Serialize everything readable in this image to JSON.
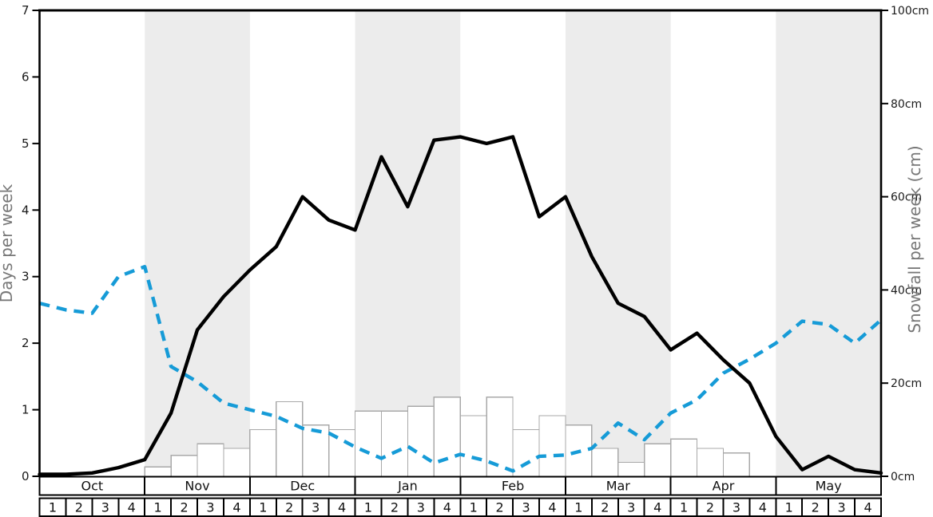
{
  "chart_data": {
    "type": "line",
    "title": "",
    "x_axis": {
      "months": [
        "Oct",
        "Nov",
        "Dec",
        "Jan",
        "Feb",
        "Mar",
        "Apr",
        "May"
      ],
      "week_labels": [
        "1",
        "2",
        "3",
        "4"
      ],
      "shaded_months": [
        "Nov",
        "Jan",
        "Mar",
        "May"
      ]
    },
    "left_axis": {
      "label": "Days per week",
      "ticks": [
        "0",
        "1",
        "2",
        "3",
        "4",
        "5",
        "6",
        "7"
      ],
      "range": [
        0,
        7
      ]
    },
    "right_axis": {
      "label": "Snowfall per week (cm)",
      "tick_values": [
        0,
        20,
        40,
        60,
        80,
        100
      ],
      "tick_labels": [
        "0cm",
        "20cm",
        "40cm",
        "60cm",
        "80cm",
        "100cm"
      ],
      "range": [
        0,
        100
      ]
    },
    "series": [
      {
        "name": "days-per-week-solid-line",
        "type": "line",
        "style": "solid",
        "axis": "left",
        "x_unit": "week-boundaries (33 points, Oct wk1 through end of May)",
        "values": [
          0.03,
          0.03,
          0.05,
          0.13,
          0.25,
          0.95,
          2.2,
          2.7,
          3.1,
          3.45,
          4.2,
          3.85,
          3.7,
          4.8,
          4.05,
          5.05,
          5.1,
          5.0,
          5.1,
          3.9,
          4.2,
          3.3,
          2.6,
          2.4,
          1.9,
          2.15,
          1.75,
          1.4,
          0.6,
          0.1,
          0.3,
          0.1,
          0.05
        ]
      },
      {
        "name": "days-per-week-dashed-line",
        "type": "line",
        "style": "dashed",
        "axis": "left",
        "x_unit": "week-boundaries (33 points, Oct wk1 through end of May)",
        "values": [
          2.6,
          2.5,
          2.45,
          3.0,
          3.15,
          1.65,
          1.42,
          1.1,
          1.0,
          0.9,
          0.72,
          0.65,
          0.44,
          0.27,
          0.45,
          0.2,
          0.33,
          0.23,
          0.08,
          0.3,
          0.32,
          0.42,
          0.8,
          0.55,
          0.95,
          1.15,
          1.55,
          1.76,
          2.0,
          2.33,
          2.28,
          2.0,
          2.35
        ]
      },
      {
        "name": "snowfall-per-week-bars",
        "type": "bar",
        "axis": "right",
        "unit": "cm",
        "x_unit": "one bar per week (32 weeks)",
        "values": [
          0,
          0,
          0,
          0,
          2,
          4.5,
          7,
          6,
          10,
          16,
          11,
          10,
          14,
          14,
          15,
          17,
          13,
          17,
          10,
          13,
          11,
          6,
          3,
          7,
          8,
          6,
          5,
          0,
          0,
          0,
          0,
          0
        ]
      }
    ],
    "grid": "off",
    "legend": "none"
  },
  "colors": {
    "dashed_line": "#169bd7",
    "solid_line": "#000000",
    "shaded_band": "#ececec",
    "bar_fill": "#ffffff",
    "bar_border": "#a9a9a9",
    "axis_title": "#777777",
    "tick_label": "#1a1a1a",
    "table_border": "#000000"
  }
}
